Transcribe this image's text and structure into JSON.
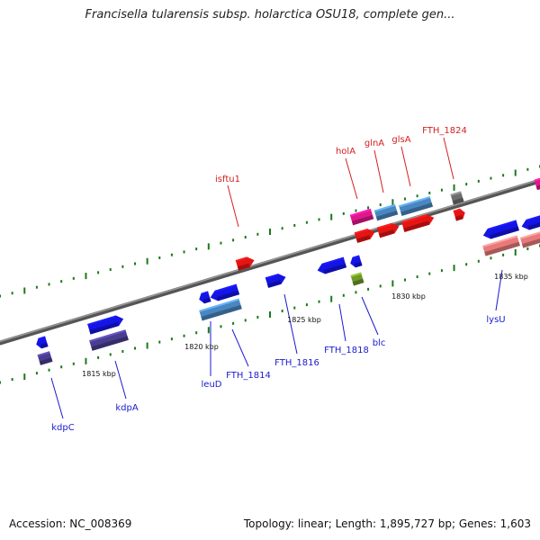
{
  "title": "Francisella tularensis subsp. holarctica OSU18, complete gen...",
  "accession": "Accession: NC_008369",
  "topology": "Topology: linear; Length: 1,895,727 bp; Genes: 1,603",
  "colors": {
    "blue": "#1414e6",
    "steel": "#4a86c0",
    "red": "#e61414",
    "magenta": "#e0188c",
    "slate": "#4a3e90",
    "salmon": "#e87a7a",
    "gray": "#6e6e6e",
    "olive": "#6f9a2a",
    "label_blue": "#1a1ad0",
    "label_red": "#d42020",
    "tick": "#1a7a1a"
  },
  "scale": {
    "labels": [
      "1815 kbp",
      "1820 kbp",
      "1825 kbp",
      "1830 kbp",
      "1835 kbp"
    ]
  },
  "genes": [
    {
      "name": "kdpC",
      "color": "label_blue"
    },
    {
      "name": "kdpA",
      "color": "label_blue"
    },
    {
      "name": "leuD",
      "color": "label_blue"
    },
    {
      "name": "FTH_1814",
      "color": "label_blue"
    },
    {
      "name": "FTH_1816",
      "color": "label_blue"
    },
    {
      "name": "FTH_1818",
      "color": "label_blue"
    },
    {
      "name": "blc",
      "color": "label_blue"
    },
    {
      "name": "lysU",
      "color": "label_blue"
    },
    {
      "name": "isftu1",
      "color": "label_red"
    },
    {
      "name": "holA",
      "color": "label_red"
    },
    {
      "name": "glnA",
      "color": "label_red"
    },
    {
      "name": "glsA",
      "color": "label_red"
    },
    {
      "name": "FTH_1824",
      "color": "label_red"
    }
  ]
}
